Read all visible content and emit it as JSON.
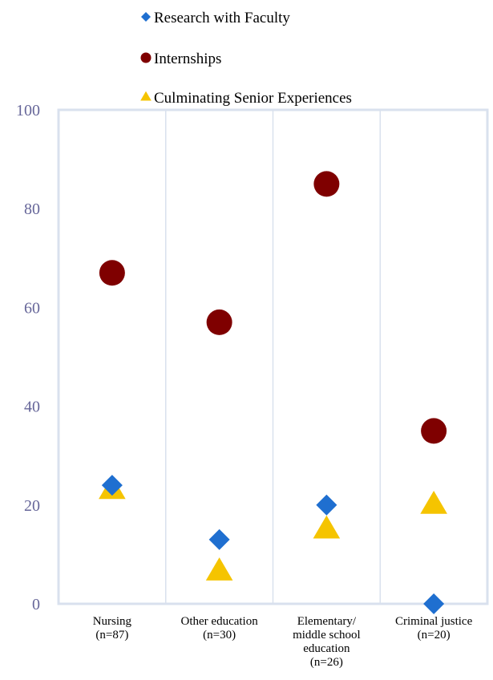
{
  "chart_data": {
    "type": "scatter",
    "title": "",
    "xlabel": "",
    "ylabel": "",
    "ylim": [
      0,
      100
    ],
    "yticks": [
      0,
      20,
      40,
      60,
      80,
      100
    ],
    "grid": "vertical separators between categories",
    "legend_position": "top",
    "categories": [
      [
        "Nursing",
        "(n=87)"
      ],
      [
        "Other education",
        "(n=30)"
      ],
      [
        "Elementary/",
        "middle school",
        "education",
        "(n=26)"
      ],
      [
        "Criminal justice",
        "(n=20)"
      ]
    ],
    "series": [
      {
        "name": "Research with Faculty",
        "marker": "diamond",
        "color": "#1f6fd0",
        "values": [
          24,
          13,
          20,
          0
        ]
      },
      {
        "name": "Internships",
        "marker": "circle",
        "color": "#7f0000",
        "values": [
          67,
          57,
          85,
          35
        ]
      },
      {
        "name": "Culminating Senior Experiences",
        "marker": "triangle",
        "color": "#f5c400",
        "values": [
          23,
          6.5,
          15,
          20
        ]
      }
    ]
  }
}
